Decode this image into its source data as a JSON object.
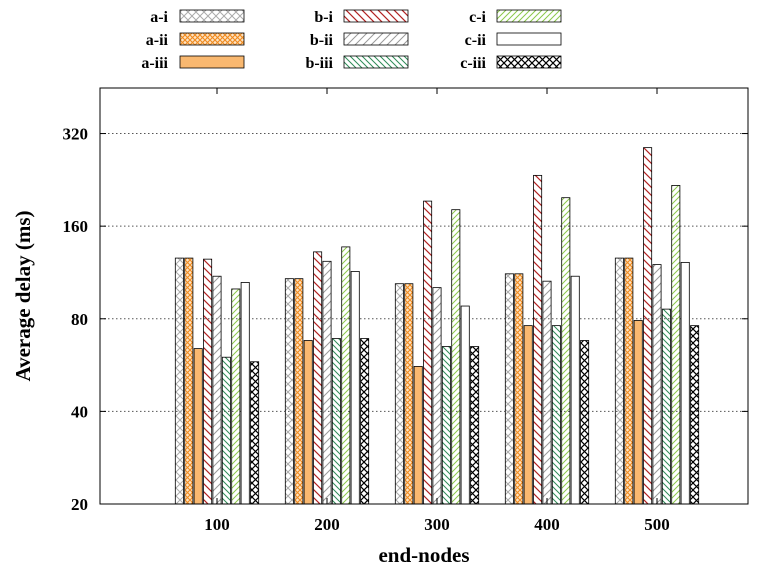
{
  "chart_data": {
    "type": "bar",
    "xlabel": "end-nodes",
    "ylabel": "Average delay (ms)",
    "y_scale": "log2",
    "ylim": [
      20,
      450
    ],
    "yticks": [
      20,
      40,
      80,
      160,
      320
    ],
    "grid": "horizontal dotted at y ticks",
    "legend": "top, 3 columns",
    "categories": [
      "100",
      "200",
      "300",
      "400",
      "500"
    ],
    "series": [
      {
        "name": "a-i",
        "pattern": "crosshatch-light",
        "color": "#aaaaaa",
        "values": [
          126,
          108,
          104,
          112,
          126
        ]
      },
      {
        "name": "a-ii",
        "pattern": "crosshatch-dense",
        "color": "#f5a04a",
        "values": [
          126,
          108,
          104,
          112,
          126
        ]
      },
      {
        "name": "a-iii",
        "pattern": "solid",
        "color": "#f9b870",
        "values": [
          64,
          68,
          56,
          76,
          79
        ]
      },
      {
        "name": "b-i",
        "pattern": "diag-back",
        "color": "#b22222",
        "values": [
          125,
          132,
          193,
          234,
          288
        ]
      },
      {
        "name": "b-ii",
        "pattern": "diag-forward",
        "color": "#999999",
        "values": [
          110,
          123,
          101,
          106,
          120
        ]
      },
      {
        "name": "b-iii",
        "pattern": "diag-back",
        "color": "#2e8b57",
        "values": [
          60,
          69,
          65,
          76,
          86
        ]
      },
      {
        "name": "c-i",
        "pattern": "diag-forward",
        "color": "#8cc84b",
        "values": [
          100,
          137,
          181,
          198,
          217
        ]
      },
      {
        "name": "c-ii",
        "pattern": "empty",
        "color": "#000000",
        "values": [
          105,
          114,
          88,
          110,
          122
        ]
      },
      {
        "name": "c-iii",
        "pattern": "crosshatch-bold",
        "color": "#000000",
        "values": [
          58,
          69,
          65,
          68,
          76
        ]
      }
    ]
  }
}
